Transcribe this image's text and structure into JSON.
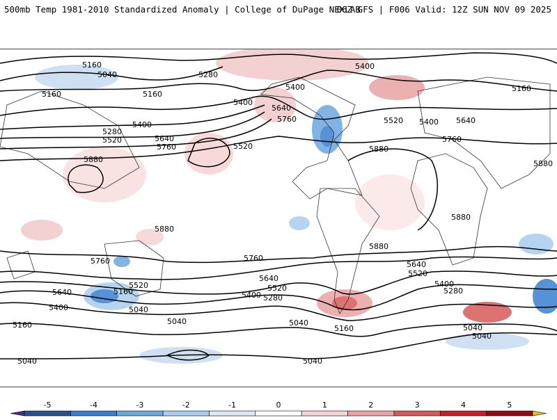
{
  "header": {
    "title": "500mb Temp 1981-2010 Standardized Anomaly | College of DuPage NEXLAB",
    "run": "06Z GFS | F006 Valid: 12Z SUN NOV 09 2025"
  },
  "contour_labels": [
    "5160",
    "5040",
    "5280",
    "5160",
    "5160",
    "5400",
    "5280",
    "5520",
    "5640",
    "5760",
    "5400",
    "5400",
    "5160",
    "5400",
    "5760",
    "5880",
    "5520",
    "5640",
    "5520",
    "5400",
    "5640",
    "5760",
    "5880",
    "5880",
    "5880",
    "5880",
    "5880",
    "5760",
    "5760",
    "5640",
    "5520",
    "5400",
    "5640",
    "5520",
    "5400",
    "5280",
    "5520",
    "5640",
    "5280",
    "5400",
    "5040",
    "5160",
    "5040",
    "5160",
    "5040",
    "5040",
    "5160",
    "5040",
    "5040",
    "5040"
  ],
  "colorbar": {
    "ticks": [
      "-5",
      "-4",
      "-3",
      "-2",
      "-1",
      "0",
      "1",
      "2",
      "3",
      "4",
      "5"
    ],
    "colors": [
      "#4b2a8c",
      "#2b4f8f",
      "#3a7fcf",
      "#6ca8e0",
      "#a9cdee",
      "#dbe9f7",
      "#ffffff",
      "#f6d3d3",
      "#eba3a3",
      "#d65a5a",
      "#c8202a",
      "#8e0b14",
      "#e8c020"
    ]
  }
}
